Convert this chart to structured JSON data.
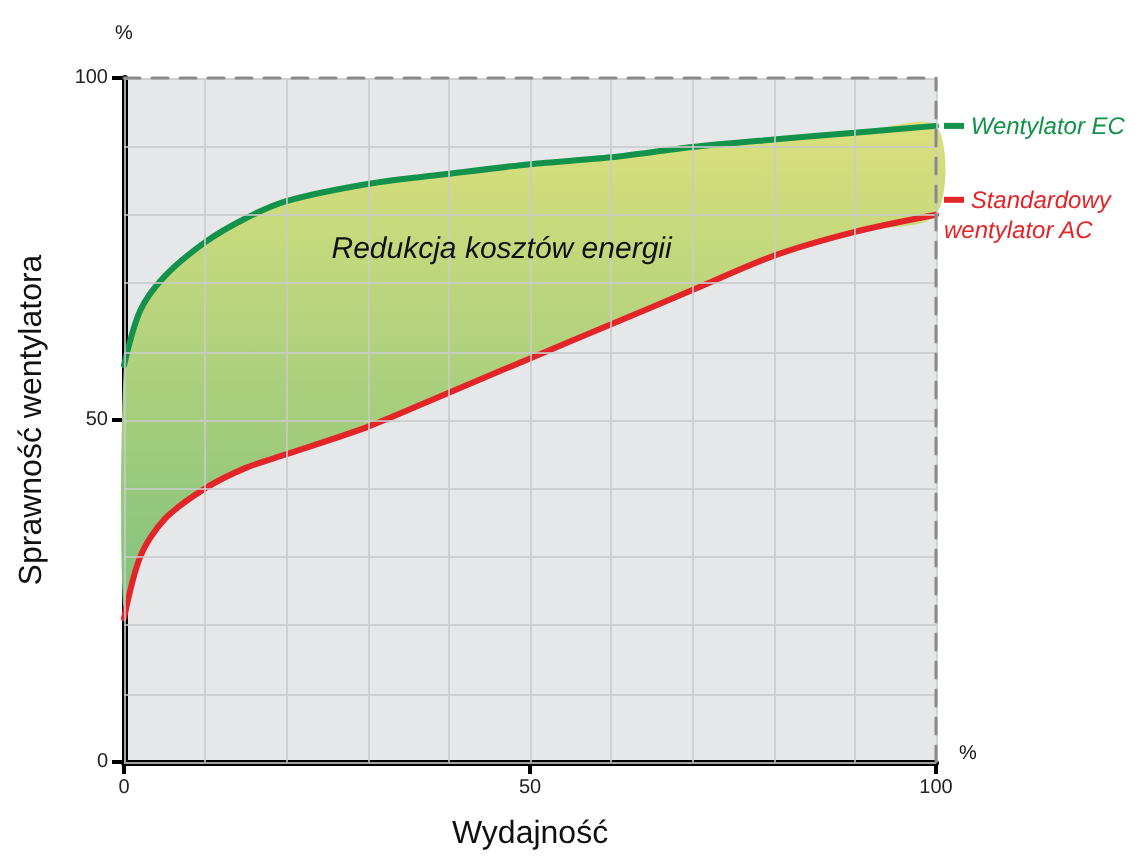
{
  "chart_data": {
    "type": "line",
    "xlabel": "Wydajność",
    "ylabel": "Sprawność wentylatora",
    "x": [
      0,
      2,
      5,
      10,
      15,
      20,
      30,
      40,
      50,
      60,
      70,
      80,
      90,
      100
    ],
    "series": [
      {
        "name": "Wentylator EC",
        "color": "#12924a",
        "values": [
          58,
          66,
          71,
          76,
          79.5,
          82,
          84.5,
          86,
          87.4,
          88.4,
          89.9,
          91,
          92,
          93
        ],
        "lower": [
          21,
          30,
          35.5,
          40,
          43,
          45,
          49,
          54,
          59,
          64,
          69,
          74,
          77.5,
          80
        ],
        "upper": [
          58,
          66,
          71,
          76,
          79.5,
          82,
          84.5,
          86,
          87.4,
          88.4,
          89.9,
          91,
          92,
          93
        ]
      },
      {
        "name": "Standardowy wentylator AC",
        "color": "#e3252a",
        "values": [
          21,
          30,
          35.5,
          40,
          43,
          45,
          49,
          54,
          59,
          64,
          69,
          74,
          77.5,
          80
        ]
      }
    ],
    "xlim": [
      0,
      100
    ],
    "ylim": [
      0,
      100
    ],
    "xticks": [
      0,
      {
        "value": 10,
        "label": null
      },
      {
        "value": 20,
        "label": null
      },
      {
        "value": 30,
        "label": null
      },
      {
        "value": 40,
        "label": null
      },
      50,
      {
        "value": 60,
        "label": null
      },
      {
        "value": 70,
        "label": null
      },
      {
        "value": 80,
        "label": null
      },
      {
        "value": 90,
        "label": null
      },
      100
    ],
    "yticks": [
      0,
      {
        "value": 10,
        "label": null
      },
      {
        "value": 20,
        "label": null
      },
      {
        "value": 30,
        "label": null
      },
      {
        "value": 40,
        "label": null
      },
      50,
      {
        "value": 60,
        "label": null
      },
      {
        "value": 70,
        "label": null
      },
      {
        "value": 80,
        "label": null
      },
      {
        "value": 90,
        "label": null
      },
      100
    ],
    "grid": true,
    "marker": "none",
    "line_style": "solid",
    "legend": "right",
    "annotations": [
      "Redukcja kosztów energii",
      "%",
      "%"
    ]
  }
}
